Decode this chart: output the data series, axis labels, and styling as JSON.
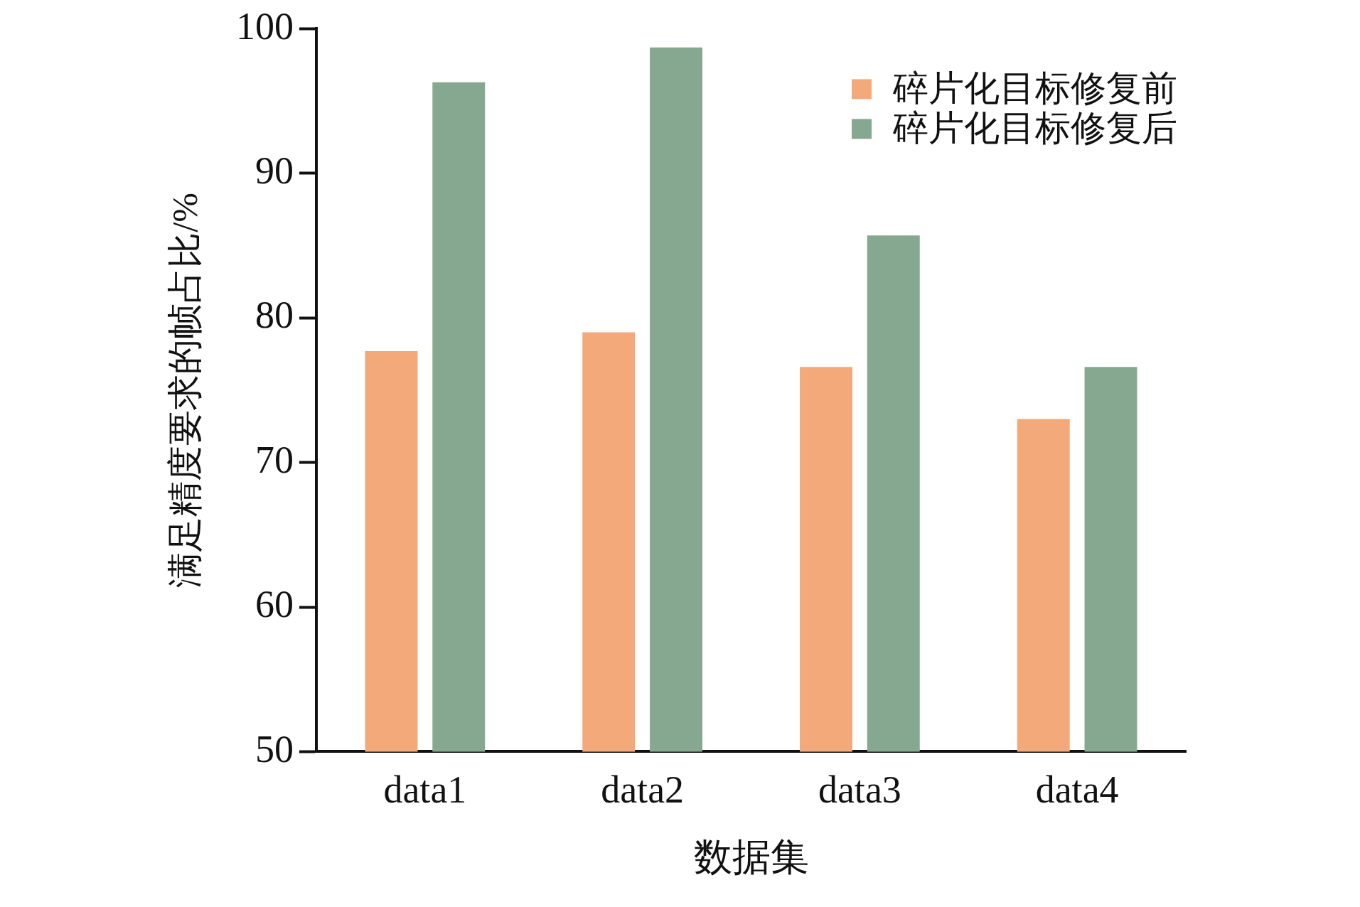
{
  "chart_data": {
    "type": "bar",
    "xlabel": "数据集",
    "ylabel": "满足精度要求的帧占比/%",
    "categories": [
      "data1",
      "data2",
      "data3",
      "data4"
    ],
    "series": [
      {
        "name": "碎片化目标修复前",
        "color": "#f4a97a",
        "values": [
          77.7,
          79.0,
          76.6,
          73.0
        ]
      },
      {
        "name": "碎片化目标修复后",
        "color": "#86a890",
        "values": [
          96.3,
          98.7,
          85.7,
          76.6
        ]
      }
    ],
    "ylim": [
      50,
      100
    ],
    "yticks": [
      50,
      60,
      70,
      80,
      90,
      100
    ],
    "grid": false,
    "legend": "top right"
  }
}
